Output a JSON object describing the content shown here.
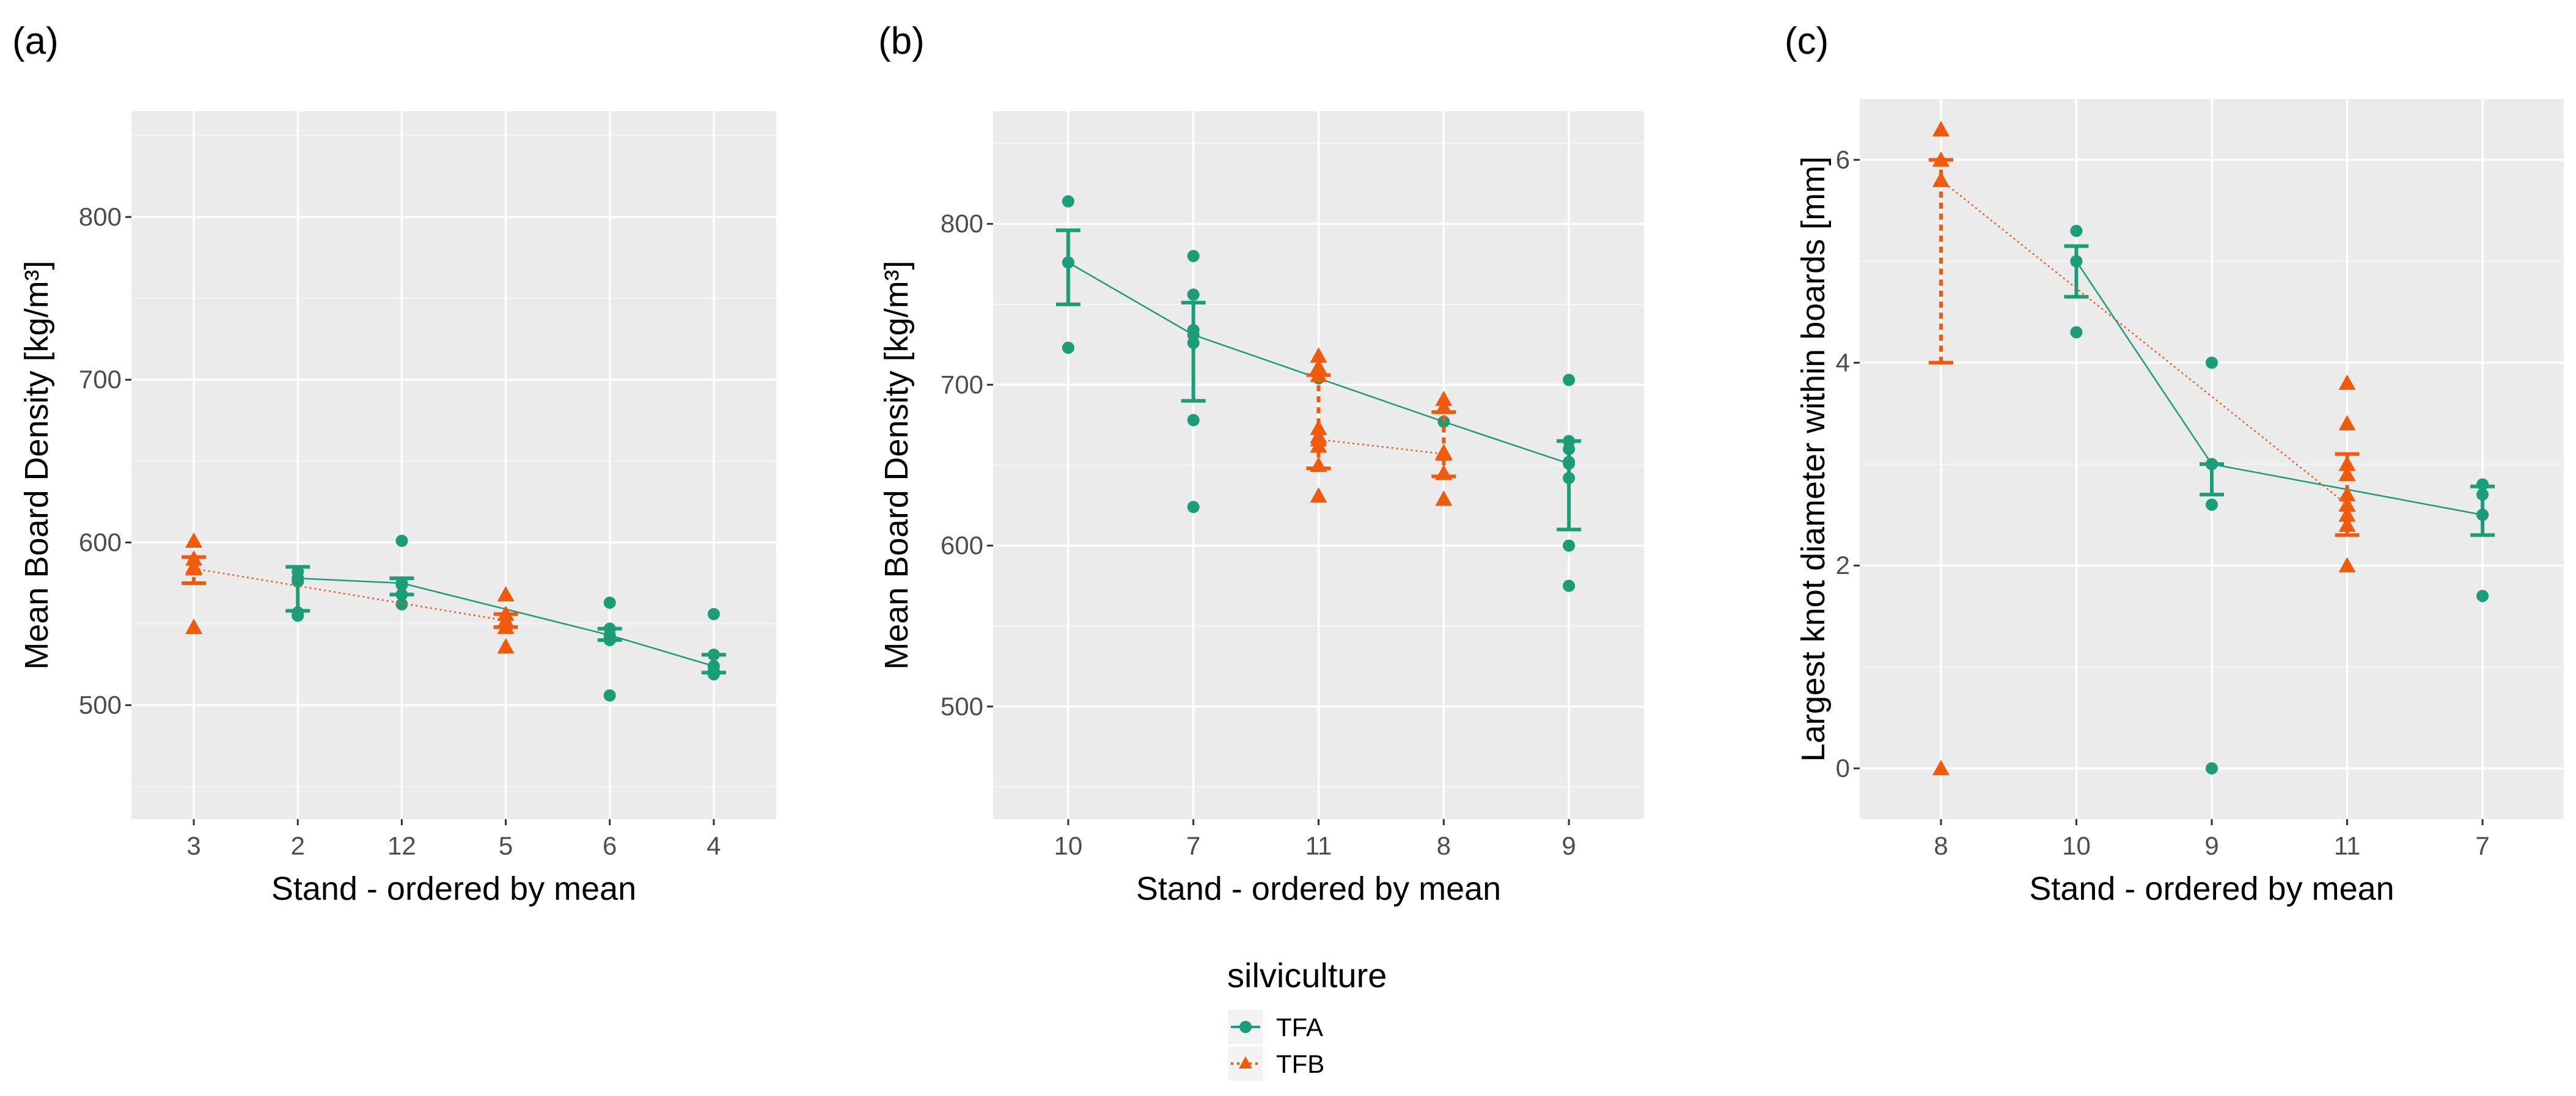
{
  "legend": {
    "title": "silviculture",
    "entries": [
      {
        "label": "TFA",
        "color": "#1b9e77",
        "shape": "circle",
        "line": "solid"
      },
      {
        "label": "TFB",
        "color": "#f05a0c",
        "shape": "triangle",
        "line": "dotted"
      }
    ]
  },
  "chart_data": [
    {
      "tag": "(a)",
      "type": "scatter",
      "xlabel": "Stand - ordered by mean",
      "ylabel": "Mean Board Density [kg/m³]",
      "categories": [
        "3",
        "2",
        "12",
        "5",
        "6",
        "4"
      ],
      "ylim": [
        430,
        865
      ],
      "yticks": [
        500,
        600,
        700,
        800
      ],
      "grid": true,
      "series": [
        {
          "name": "TFA",
          "points": [
            [
              1,
              578
            ],
            [
              1,
              582
            ],
            [
              1,
              576
            ],
            [
              1,
              557
            ],
            [
              1,
              555
            ],
            [
              2,
              601
            ],
            [
              2,
              574
            ],
            [
              2,
              568
            ],
            [
              2,
              562
            ],
            [
              4,
              563
            ],
            [
              4,
              547
            ],
            [
              4,
              541
            ],
            [
              4,
              540
            ],
            [
              4,
              506
            ],
            [
              5,
              556
            ],
            [
              5,
              531
            ],
            [
              5,
              521
            ],
            [
              5,
              519
            ]
          ],
          "means": [
            [
              1,
              578
            ],
            [
              2,
              575
            ],
            [
              4,
              543
            ],
            [
              5,
              524
            ]
          ],
          "errorbars": [
            [
              1,
              558,
              585
            ],
            [
              2,
              568,
              578
            ],
            [
              4,
              540,
              547
            ],
            [
              5,
              520,
              531
            ]
          ]
        },
        {
          "name": "TFB",
          "points": [
            [
              0,
              601
            ],
            [
              0,
              590
            ],
            [
              0,
              585
            ],
            [
              0,
              548
            ],
            [
              3,
              568
            ],
            [
              3,
              556
            ],
            [
              3,
              548
            ],
            [
              3,
              536
            ]
          ],
          "means": [
            [
              0,
              584
            ],
            [
              3,
              552
            ]
          ],
          "errorbars": [
            [
              0,
              575,
              591
            ],
            [
              3,
              548,
              556
            ]
          ]
        }
      ]
    },
    {
      "tag": "(b)",
      "type": "scatter",
      "xlabel": "Stand - ordered by mean",
      "ylabel": "Mean Board Density [kg/m³]",
      "categories": [
        "10",
        "7",
        "11",
        "8",
        "9"
      ],
      "ylim": [
        430,
        870
      ],
      "yticks": [
        500,
        600,
        700,
        800
      ],
      "grid": true,
      "series": [
        {
          "name": "TFA",
          "points": [
            [
              0,
              814
            ],
            [
              0,
              776
            ],
            [
              0,
              723
            ],
            [
              1,
              780
            ],
            [
              1,
              756
            ],
            [
              1,
              734
            ],
            [
              1,
              726
            ],
            [
              1,
              678
            ],
            [
              1,
              624
            ],
            [
              4,
              703
            ],
            [
              4,
              665
            ],
            [
              4,
              660
            ],
            [
              4,
              652
            ],
            [
              4,
              642
            ],
            [
              4,
              600
            ],
            [
              4,
              575
            ]
          ],
          "means": [
            [
              0,
              776
            ],
            [
              1,
              731
            ],
            [
              2,
              704
            ],
            [
              3,
              677
            ],
            [
              4,
              651
            ]
          ],
          "errorbars": [
            [
              0,
              750,
              796
            ],
            [
              1,
              690,
              751
            ],
            [
              4,
              610,
              665
            ]
          ]
        },
        {
          "name": "TFB",
          "points": [
            [
              2,
              718
            ],
            [
              2,
              711
            ],
            [
              2,
              706
            ],
            [
              2,
              673
            ],
            [
              2,
              668
            ],
            [
              2,
              662
            ],
            [
              2,
              650
            ],
            [
              2,
              631
            ],
            [
              3,
              691
            ],
            [
              3,
              686
            ],
            [
              3,
              658
            ],
            [
              3,
              645
            ],
            [
              3,
              629
            ]
          ],
          "means": [
            [
              2,
              666
            ],
            [
              3,
              657
            ]
          ],
          "errorbars": [
            [
              2,
              648,
              706
            ],
            [
              3,
              643,
              683
            ]
          ]
        }
      ]
    },
    {
      "tag": "(c)",
      "type": "scatter",
      "xlabel": "Stand - ordered by mean",
      "ylabel": "Largest knot diameter within boards  [mm]",
      "categories": [
        "8",
        "10",
        "9",
        "11",
        "7"
      ],
      "ylim": [
        -0.5,
        6.6
      ],
      "yticks": [
        0,
        2,
        4,
        6
      ],
      "grid": true,
      "series": [
        {
          "name": "TFA",
          "points": [
            [
              1,
              5.3
            ],
            [
              1,
              5.0
            ],
            [
              1,
              4.3
            ],
            [
              2,
              4.0
            ],
            [
              2,
              3.0
            ],
            [
              2,
              2.6
            ],
            [
              2,
              0.0
            ],
            [
              4,
              2.8
            ],
            [
              4,
              2.7
            ],
            [
              4,
              2.5
            ],
            [
              4,
              1.7
            ]
          ],
          "means": [
            [
              1,
              5.0
            ],
            [
              2,
              3.0
            ],
            [
              4,
              2.5
            ]
          ],
          "errorbars": [
            [
              1,
              4.65,
              5.15
            ],
            [
              2,
              2.7,
              3.0
            ],
            [
              4,
              2.3,
              2.78
            ]
          ]
        },
        {
          "name": "TFB",
          "points": [
            [
              0,
              6.3
            ],
            [
              0,
              6.0
            ],
            [
              0,
              5.8
            ],
            [
              0,
              0.0
            ],
            [
              3,
              3.8
            ],
            [
              3,
              3.4
            ],
            [
              3,
              3.0
            ],
            [
              3,
              2.9
            ],
            [
              3,
              2.7
            ],
            [
              3,
              2.6
            ],
            [
              3,
              2.5
            ],
            [
              3,
              2.4
            ],
            [
              3,
              2.0
            ]
          ],
          "means": [
            [
              0,
              5.8
            ],
            [
              3,
              2.6
            ]
          ],
          "errorbars": [
            [
              0,
              4.0,
              6.0
            ],
            [
              3,
              2.3,
              3.1
            ]
          ]
        }
      ]
    }
  ]
}
